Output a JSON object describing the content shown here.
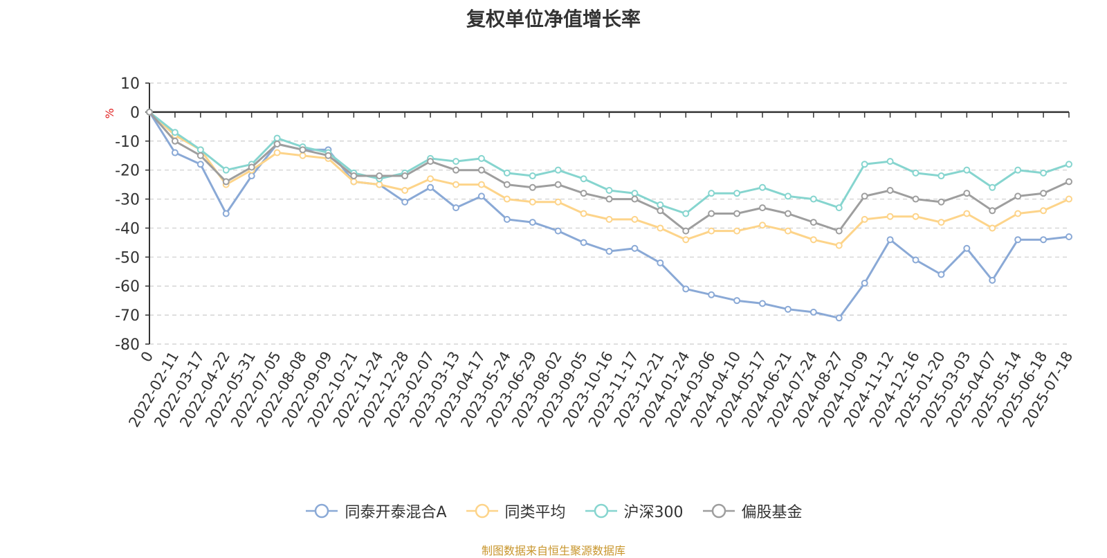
{
  "chart_data": {
    "type": "line",
    "title": "复权单位净值增长率",
    "ylabel": "%",
    "ylim": [
      -80,
      10
    ],
    "yticks": [
      10,
      0,
      -10,
      -20,
      -30,
      -40,
      -50,
      -60,
      -70,
      -80
    ],
    "grid": true,
    "legend_position": "bottom",
    "x_labels": [
      "0",
      "2022-02-11",
      "2022-03-17",
      "2022-04-22",
      "2022-05-31",
      "2022-07-05",
      "2022-08-08",
      "2022-09-09",
      "2022-10-21",
      "2022-11-24",
      "2022-12-28",
      "2023-02-07",
      "2023-03-13",
      "2023-04-17",
      "2023-05-24",
      "2023-06-29",
      "2023-08-02",
      "2023-09-05",
      "2023-10-16",
      "2023-11-17",
      "2023-12-21",
      "2024-01-24",
      "2024-03-06",
      "2024-04-10",
      "2024-05-17",
      "2024-06-21",
      "2024-07-24",
      "2024-08-27",
      "2024-10-09",
      "2024-11-12",
      "2024-12-16",
      "2025-01-20",
      "2025-03-03",
      "2025-04-07",
      "2025-05-14",
      "2025-06-18",
      "2025-07-18"
    ],
    "series": [
      {
        "name": "同泰开泰混合A",
        "color": "#8aa9d6",
        "values": [
          0,
          -14,
          -18,
          -35,
          -22,
          -11,
          -13,
          -13,
          -24,
          -25,
          -31,
          -26,
          -33,
          -29,
          -37,
          -38,
          -41,
          -45,
          -48,
          -47,
          -52,
          -61,
          -63,
          -65,
          -66,
          -68,
          -69,
          -71,
          -59,
          -44,
          -51,
          -56,
          -47,
          -58,
          -44,
          -44,
          -43
        ]
      },
      {
        "name": "同类平均",
        "color": "#fdd48a",
        "values": [
          0,
          -8,
          -13,
          -25,
          -20,
          -14,
          -15,
          -16,
          -24,
          -25,
          -27,
          -23,
          -25,
          -25,
          -30,
          -31,
          -31,
          -35,
          -37,
          -37,
          -40,
          -44,
          -41,
          -41,
          -39,
          -41,
          -44,
          -46,
          -37,
          -36,
          -36,
          -38,
          -35,
          -40,
          -35,
          -34,
          -30
        ]
      },
      {
        "name": "沪深300",
        "color": "#86d5cf",
        "values": [
          0,
          -7,
          -13,
          -20,
          -18,
          -9,
          -12,
          -14,
          -21,
          -23,
          -21,
          -16,
          -17,
          -16,
          -21,
          -22,
          -20,
          -23,
          -27,
          -28,
          -32,
          -35,
          -28,
          -28,
          -26,
          -29,
          -30,
          -33,
          -18,
          -17,
          -21,
          -22,
          -20,
          -26,
          -20,
          -21,
          -18
        ]
      },
      {
        "name": "偏股基金",
        "color": "#9e9e9e",
        "values": [
          0,
          -10,
          -15,
          -24,
          -19,
          -11,
          -13,
          -15,
          -22,
          -22,
          -22,
          -17,
          -20,
          -20,
          -25,
          -26,
          -25,
          -28,
          -30,
          -30,
          -34,
          -41,
          -35,
          -35,
          -33,
          -35,
          -38,
          -41,
          -29,
          -27,
          -30,
          -31,
          -28,
          -34,
          -29,
          -28,
          -24
        ]
      }
    ]
  },
  "footer": {
    "source": "制图数据来自恒生聚源数据库"
  }
}
